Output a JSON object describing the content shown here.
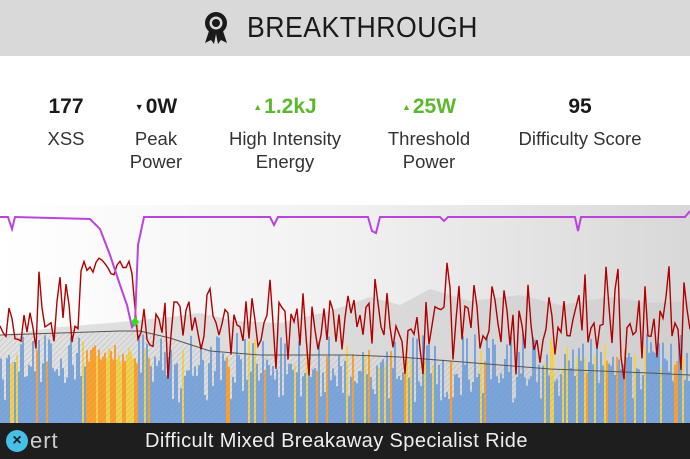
{
  "header": {
    "title": "BREAKTHROUGH",
    "icon": "award-badge-icon"
  },
  "metrics": [
    {
      "value": "177",
      "label_line1": "XSS",
      "label_line2": "",
      "trend": ""
    },
    {
      "value": "0W",
      "label_line1": "Peak",
      "label_line2": "Power",
      "trend": "down"
    },
    {
      "value": "1.2kJ",
      "label_line1": "High Intensity",
      "label_line2": "Energy",
      "trend": "up"
    },
    {
      "value": "25W",
      "label_line1": "Threshold",
      "label_line2": "Power",
      "trend": "up"
    },
    {
      "value": "95",
      "label_line1": "Difficulty Score",
      "label_line2": "",
      "trend": ""
    }
  ],
  "colors": {
    "header_bg": "#d9d9d9",
    "positive": "#5cb82c",
    "power_line": "#b00000",
    "training_load_line": "#bb44dd",
    "bar_blue": "#6fa0dd",
    "bar_orange": "#ff9a1a",
    "bar_yellow": "#f5d23c",
    "footer_bg": "#1e1e1e",
    "logo": "#47c0e6"
  },
  "footer": {
    "logo_text": "ert",
    "description": "Difficult Mixed Breakaway Specialist Ride"
  }
}
